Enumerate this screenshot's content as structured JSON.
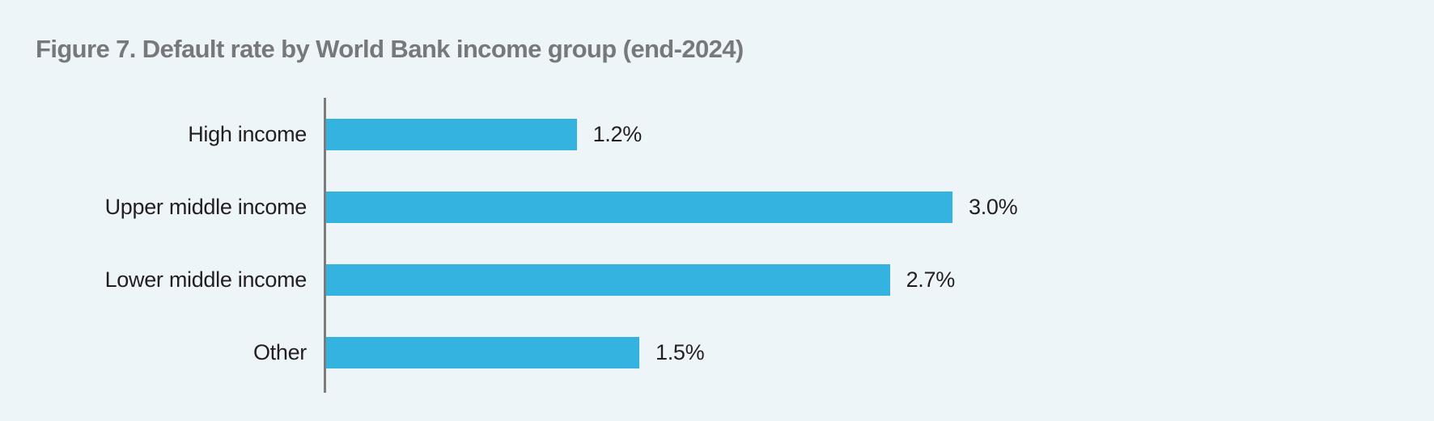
{
  "chart_data": {
    "type": "bar",
    "orientation": "horizontal",
    "title": "Figure 7. Default rate by World Bank income group (end-2024)",
    "categories": [
      "High income",
      "Upper middle income",
      "Lower middle income",
      "Other"
    ],
    "values": [
      1.2,
      3.0,
      2.7,
      1.5
    ],
    "value_labels": [
      "1.2%",
      "3.0%",
      "2.7%",
      "1.5%"
    ],
    "unit": "%",
    "xlabel": "",
    "ylabel": "",
    "xlim": [
      0,
      3.3
    ],
    "grid": false,
    "legend": null,
    "bar_color": "#35b3e0",
    "axis_color": "#7c7c7c",
    "background_color": "#edf5f9",
    "title_color": "#77787b",
    "label_color": "#231f20"
  }
}
